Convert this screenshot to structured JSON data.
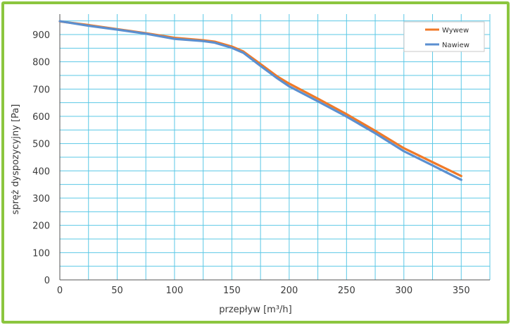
{
  "chart_data": {
    "type": "line",
    "xlabel": "przepływ [m³/h]",
    "ylabel": "spręż dyspozycyjny  [Pa]",
    "xlim": [
      0,
      375
    ],
    "ylim": [
      0,
      975
    ],
    "x_ticks": [
      0,
      50,
      100,
      150,
      200,
      250,
      300,
      350
    ],
    "y_ticks": [
      0,
      100,
      200,
      300,
      400,
      500,
      600,
      700,
      800,
      900
    ],
    "x_grid_step": 25,
    "y_grid_step": 50,
    "grid": true,
    "legend_position": "top-right",
    "series": [
      {
        "name": "Wywew",
        "color": "#f07a28",
        "x": [
          0,
          25,
          50,
          75,
          100,
          125,
          135,
          150,
          160,
          175,
          190,
          200,
          225,
          250,
          275,
          300,
          325,
          350
        ],
        "y": [
          948,
          935,
          920,
          905,
          888,
          879,
          874,
          856,
          838,
          792,
          745,
          720,
          665,
          608,
          547,
          483,
          432,
          381
        ]
      },
      {
        "name": "Nawiew",
        "color": "#5b8fd0",
        "x": [
          0,
          25,
          50,
          75,
          100,
          125,
          135,
          150,
          160,
          175,
          190,
          200,
          225,
          250,
          275,
          300,
          325,
          350
        ],
        "y": [
          949,
          932,
          918,
          903,
          884,
          876,
          870,
          851,
          833,
          785,
          738,
          710,
          655,
          599,
          538,
          472,
          420,
          367
        ]
      }
    ]
  }
}
